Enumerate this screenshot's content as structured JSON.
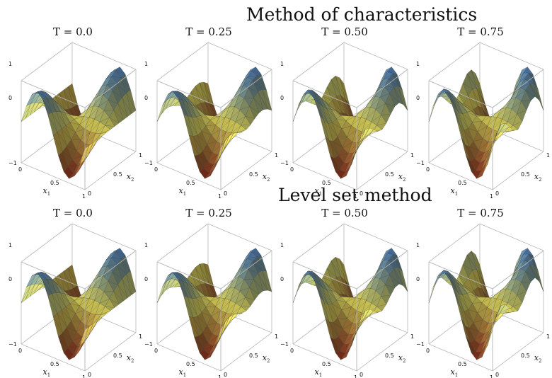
{
  "figure": {
    "sections": [
      {
        "title": "Method of characteristics",
        "panels": [
          {
            "t_label": "T = 0.0",
            "time": 0.0
          },
          {
            "t_label": "T = 0.25",
            "time": 0.25
          },
          {
            "t_label": "T = 0.50",
            "time": 0.5
          },
          {
            "t_label": "T = 0.75",
            "time": 0.75
          }
        ]
      },
      {
        "title": "Level set method",
        "panels": [
          {
            "t_label": "T = 0.0",
            "time": 0.0
          },
          {
            "t_label": "T = 0.25",
            "time": 0.25
          },
          {
            "t_label": "T = 0.50",
            "time": 0.5
          },
          {
            "t_label": "T = 0.75",
            "time": 0.75
          }
        ]
      }
    ],
    "axes": {
      "z_ticks": [
        "1",
        "0",
        "−1"
      ],
      "x1_ticks": [
        "0",
        "0.5",
        "1"
      ],
      "x2_ticks": [
        "0",
        "0.5",
        "1"
      ],
      "x1_label": "x",
      "x1_sub": "1",
      "x2_label": "x",
      "x2_sub": "2"
    },
    "colors": {
      "high": "#3b74c9",
      "mid": "#e8e060",
      "low": "#7a1212",
      "box": "#b8b8b8",
      "mesh": "#333333"
    }
  }
}
